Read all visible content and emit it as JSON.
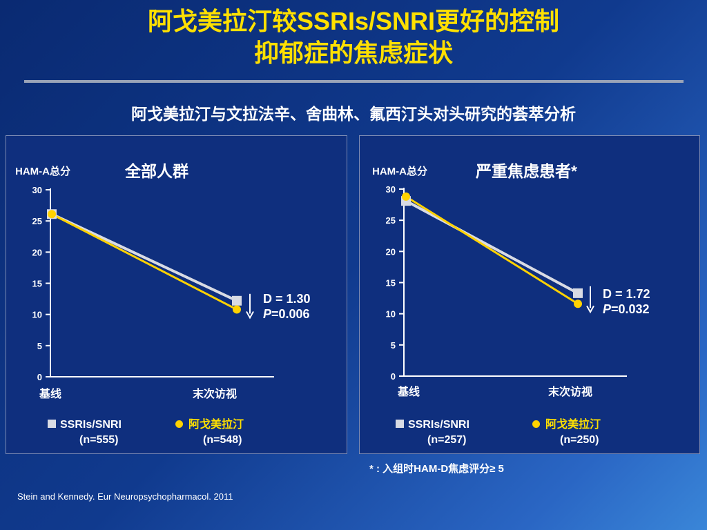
{
  "slide": {
    "title_line1": "阿戈美拉汀较SSRIs/SNRI更好的控制",
    "title_line2": "抑郁症的焦虑症状",
    "subtitle": "阿戈美拉汀与文拉法辛、舍曲林、氟西汀头对头研究的荟萃分析",
    "footnote": "* : 入组时HAM-D焦虑评分≥ 5",
    "citation": "Stein and Kennedy. Eur Neuropsychopharmacol.  2011"
  },
  "colors": {
    "background": "#103a8e",
    "title": "#ffe000",
    "ssri_series": "#d8dbe4",
    "agomelatine_series": "#ffd200",
    "panel": "#0f2f7e"
  },
  "chart_data": [
    {
      "type": "line",
      "title": "全部人群",
      "ylabel": "HAM-A总分",
      "categories": [
        "基线",
        "末次访视"
      ],
      "ylim": [
        0,
        30
      ],
      "yticks": [
        "0",
        "5",
        "10",
        "15",
        "20",
        "25",
        "30"
      ],
      "series": [
        {
          "name": "SSRIs/SNRI",
          "n": "(n=555)",
          "marker": "square",
          "values": [
            26.1,
            12.2
          ]
        },
        {
          "name": "阿戈美拉汀",
          "n": "(n=548)",
          "marker": "circle",
          "values": [
            26.1,
            10.8
          ]
        }
      ],
      "annotation": {
        "d_label": "D = 1.30",
        "p_italic": "P",
        "p_value": "=0.006"
      }
    },
    {
      "type": "line",
      "title": "严重焦虑患者*",
      "ylabel": "HAM-A总分",
      "categories": [
        "基线",
        "末次访视"
      ],
      "ylim": [
        0,
        30
      ],
      "yticks": [
        "0",
        "5",
        "10",
        "15",
        "20",
        "25",
        "30"
      ],
      "series": [
        {
          "name": "SSRIs/SNRI",
          "n": "(n=257)",
          "marker": "square",
          "values": [
            28.1,
            13.3
          ]
        },
        {
          "name": "阿戈美拉汀",
          "n": "(n=250)",
          "marker": "circle",
          "values": [
            28.8,
            11.6
          ]
        }
      ],
      "annotation": {
        "d_label": "D = 1.72",
        "p_italic": "P",
        "p_value": "=0.032"
      }
    }
  ]
}
